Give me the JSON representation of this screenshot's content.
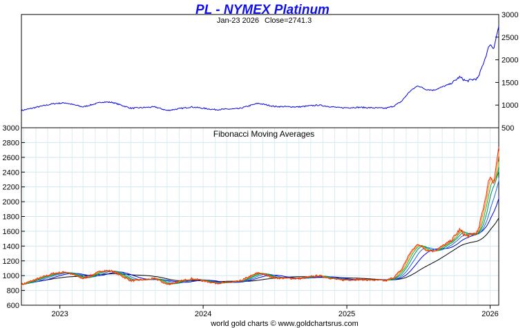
{
  "chart_data": [
    {
      "type": "line",
      "title": "PL  -  NYMEX Platinum",
      "subtitle_date": "Jan-23  2026",
      "subtitle_close": "Close=2741.3",
      "ylim": [
        500,
        3000
      ],
      "yticks": [
        500,
        1000,
        1500,
        2000,
        2500,
        3000
      ],
      "ytick_labels": [
        "500",
        "1000",
        "1500",
        "2000",
        "2500",
        "3000"
      ],
      "y_axis_side": "right",
      "grid": false,
      "series": [
        {
          "color": "#0000dd",
          "x": [
            "2022-09-25",
            "2022-11-01",
            "2022-12-15",
            "2023-01-15",
            "2023-03-01",
            "2023-04-20",
            "2023-05-15",
            "2023-07-01",
            "2023-09-01",
            "2023-10-01",
            "2023-12-01",
            "2024-02-01",
            "2024-04-01",
            "2024-05-20",
            "2024-07-01",
            "2024-09-01",
            "2024-10-20",
            "2024-12-15",
            "2025-02-01",
            "2025-04-10",
            "2025-05-01",
            "2025-05-20",
            "2025-06-10",
            "2025-07-01",
            "2025-07-20",
            "2025-08-10",
            "2025-09-01",
            "2025-09-25",
            "2025-10-15",
            "2025-11-01",
            "2025-12-01",
            "2025-12-20",
            "2025-12-31",
            "2026-01-10",
            "2026-01-23"
          ],
          "values": [
            880,
            950,
            1030,
            1050,
            960,
            1070,
            1060,
            930,
            960,
            880,
            960,
            900,
            920,
            1040,
            970,
            960,
            1000,
            940,
            950,
            930,
            980,
            1080,
            1300,
            1430,
            1350,
            1330,
            1400,
            1480,
            1620,
            1530,
            1590,
            2050,
            2350,
            2250,
            2741
          ]
        }
      ]
    },
    {
      "type": "line",
      "title": "Fibonacci Moving Averages",
      "ylim": [
        600,
        3000
      ],
      "yticks": [
        600,
        800,
        1000,
        1200,
        1400,
        1600,
        1800,
        2000,
        2200,
        2400,
        2600,
        2800,
        3000
      ],
      "ytick_labels": [
        "600",
        "800",
        "1000",
        "1200",
        "1400",
        "1600",
        "1800",
        "2000",
        "2200",
        "2400",
        "2600",
        "2800",
        "3000"
      ],
      "x_tick_labels": [
        "2023",
        "2024",
        "2025",
        "2026"
      ],
      "x_tick_dates": [
        "2023-01-01",
        "2024-01-01",
        "2025-01-01",
        "2026-01-01"
      ],
      "y_axis_side": "left",
      "grid": true,
      "moving_average_colors": [
        "#ff2200",
        "#ee8800",
        "#22aa22",
        "#008866",
        "#2266dd",
        "#0000cc",
        "#000000"
      ]
    }
  ],
  "footer": "world gold charts © www.goldchartsrus.com"
}
